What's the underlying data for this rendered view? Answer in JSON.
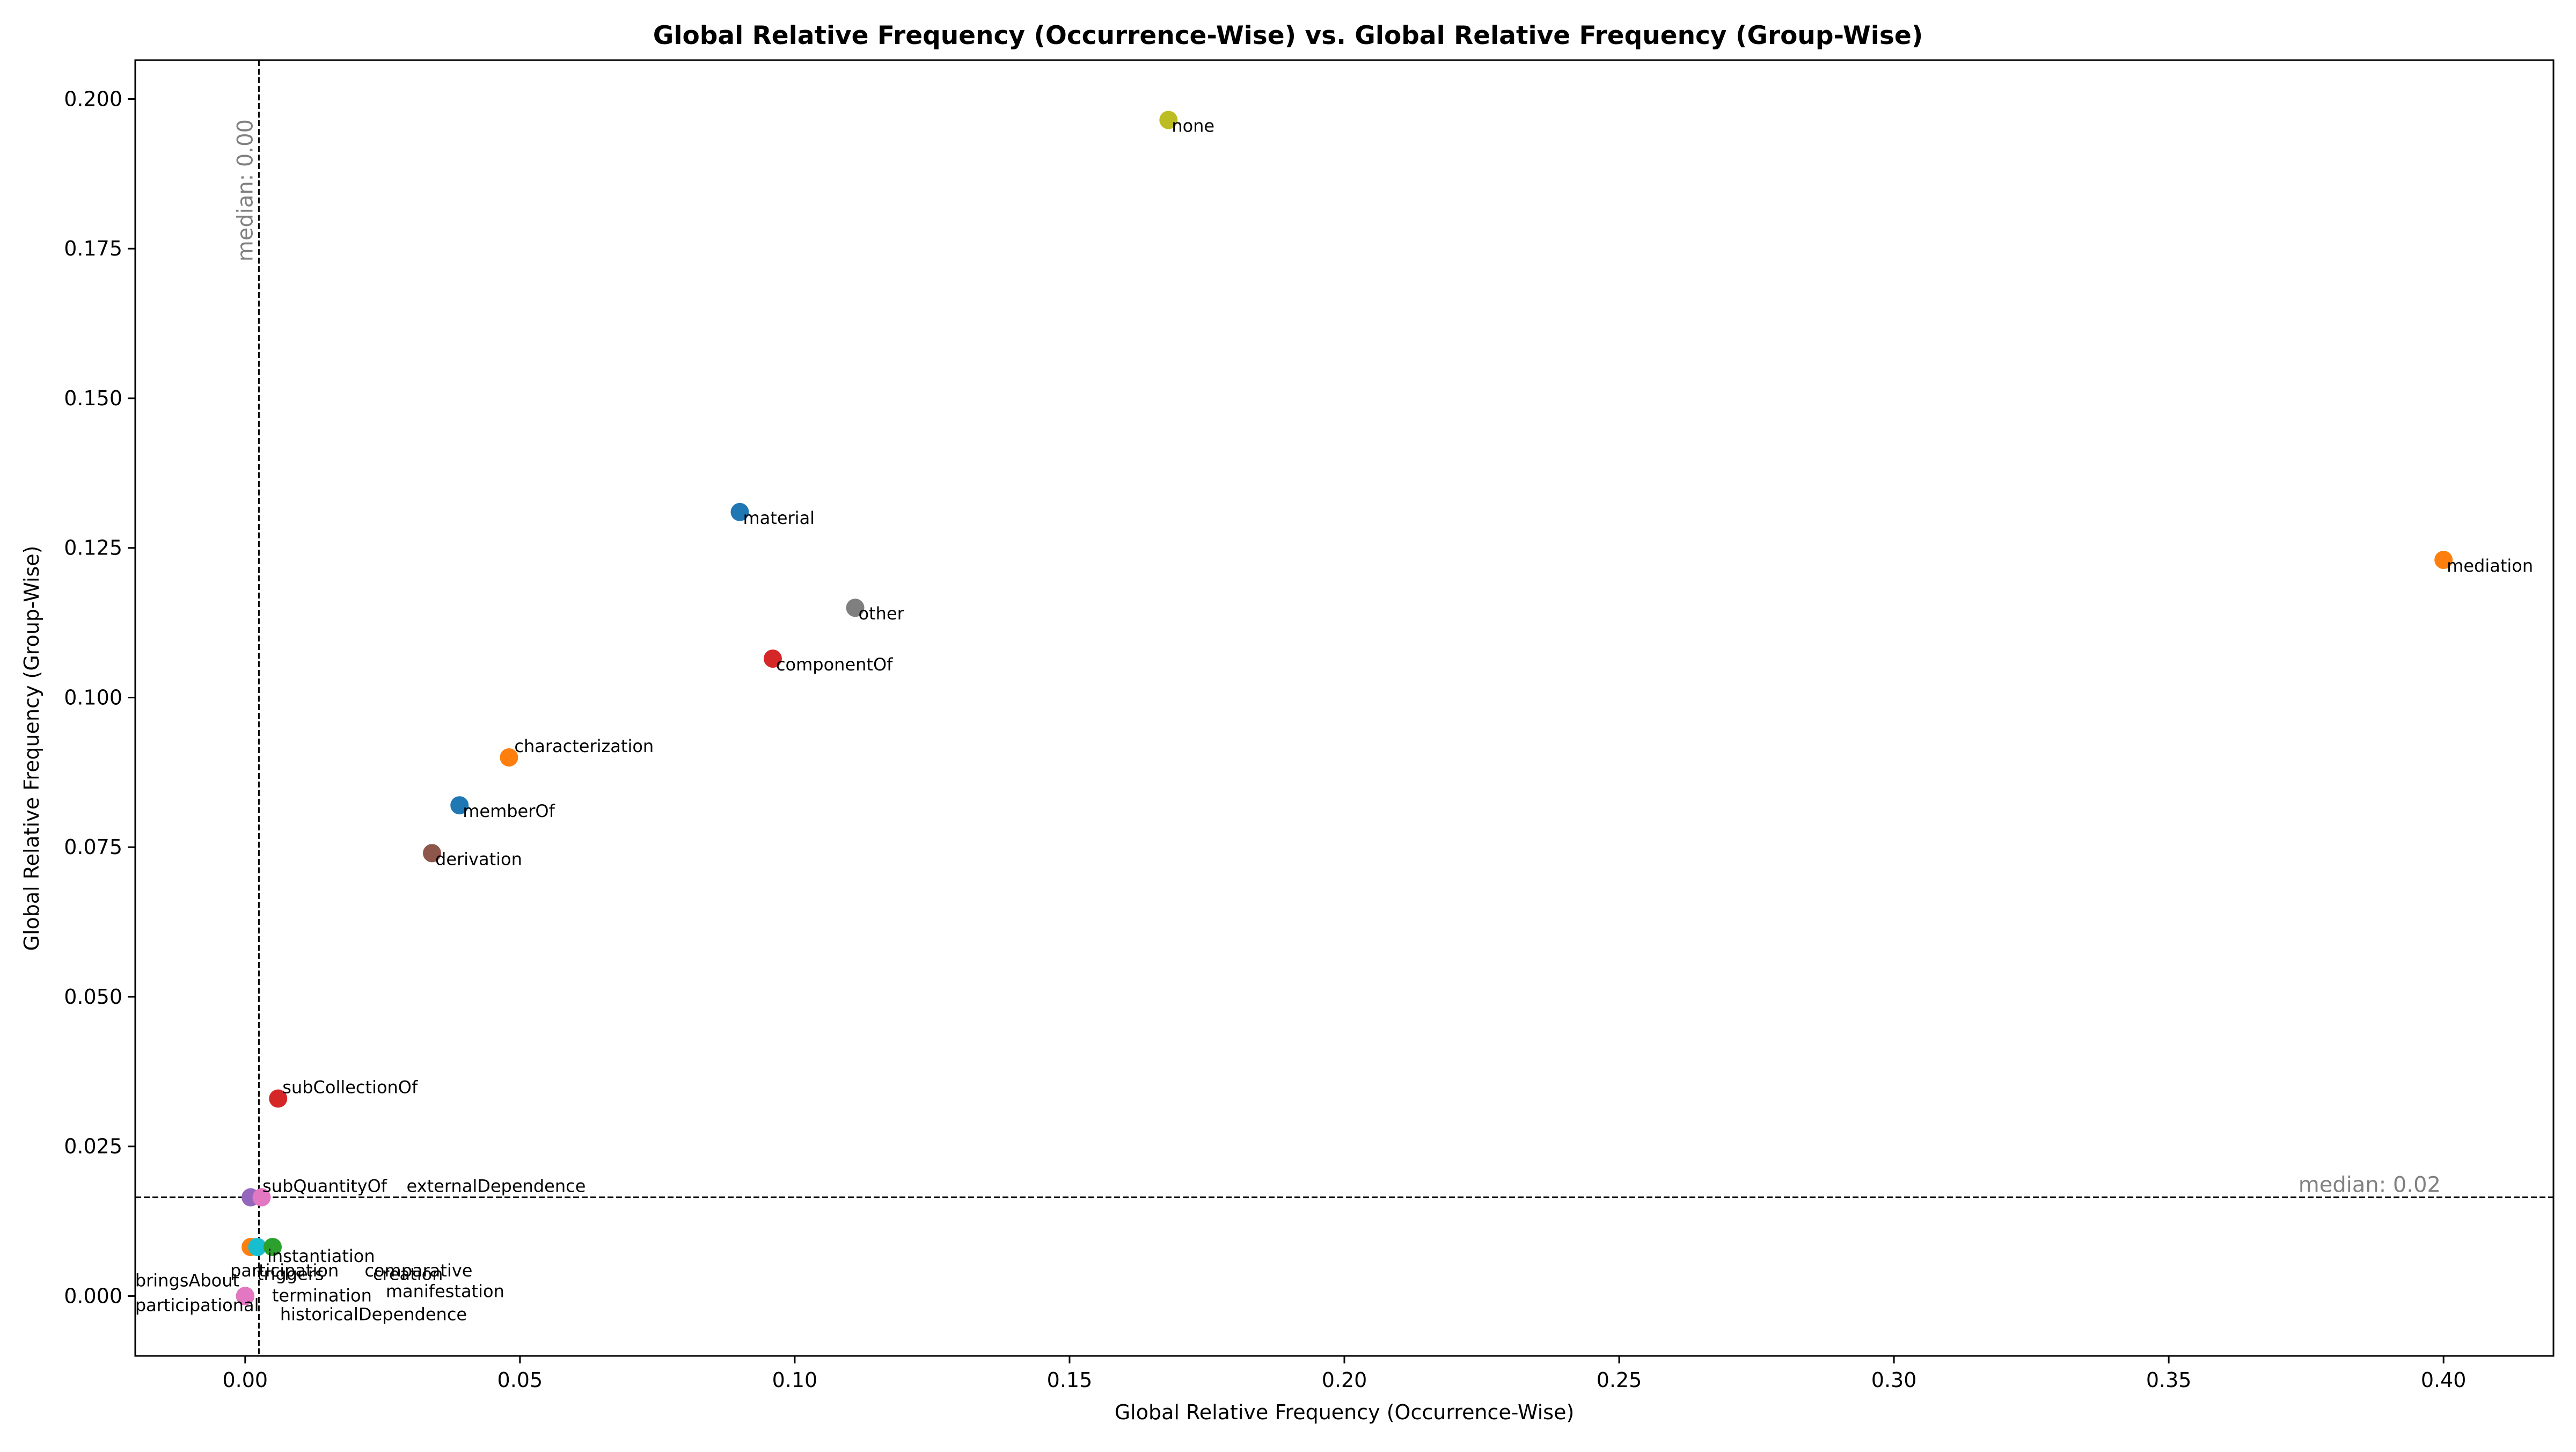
{
  "chart_data": {
    "type": "scatter",
    "title": "Global Relative Frequency (Occurrence-Wise) vs. Global Relative Frequency (Group-Wise)",
    "xlabel": "Global Relative Frequency (Occurrence-Wise)",
    "ylabel": "Global Relative Frequency (Group-Wise)",
    "xlim": [
      -0.02,
      0.42
    ],
    "ylim": [
      -0.01,
      0.2065
    ],
    "x_ticks": [
      "0.00",
      "0.05",
      "0.10",
      "0.15",
      "0.20",
      "0.25",
      "0.30",
      "0.35",
      "0.40"
    ],
    "y_ticks": [
      "0.000",
      "0.025",
      "0.050",
      "0.075",
      "0.100",
      "0.125",
      "0.150",
      "0.175",
      "0.200"
    ],
    "grid": false,
    "legend": "none",
    "medians": {
      "x": {
        "value": 0.0025,
        "label": "median: 0.00"
      },
      "y": {
        "value": 0.0165,
        "label": "median: 0.02"
      }
    },
    "points": [
      {
        "label": "none",
        "x": 0.168,
        "y": 0.1965,
        "color": "#bcbd22"
      },
      {
        "label": "material",
        "x": 0.09,
        "y": 0.131,
        "color": "#1f77b4"
      },
      {
        "label": "mediation",
        "x": 0.4,
        "y": 0.123,
        "color": "#ff7f0e"
      },
      {
        "label": "other",
        "x": 0.111,
        "y": 0.115,
        "color": "#7f7f7f"
      },
      {
        "label": "componentOf",
        "x": 0.096,
        "y": 0.1065,
        "color": "#d62728"
      },
      {
        "label": "characterization",
        "x": 0.048,
        "y": 0.09,
        "color": "#ff7f0e"
      },
      {
        "label": "memberOf",
        "x": 0.039,
        "y": 0.082,
        "color": "#1f77b4"
      },
      {
        "label": "derivation",
        "x": 0.034,
        "y": 0.074,
        "color": "#8c564b"
      },
      {
        "label": "subCollectionOf",
        "x": 0.006,
        "y": 0.033,
        "color": "#d62728"
      },
      {
        "label": "subQuantityOf",
        "x": 0.001,
        "y": 0.0165,
        "color": "#9467bd"
      },
      {
        "label": "externalDependence",
        "x": 0.003,
        "y": 0.0165,
        "color": "#e377c2"
      },
      {
        "label": "participation",
        "x": 0.001,
        "y": 0.0082,
        "color": "#ff7f0e"
      },
      {
        "label": "comparative",
        "x": 0.0022,
        "y": 0.0082,
        "color": "#17becf"
      },
      {
        "label": "instantiation",
        "x": 0.005,
        "y": 0.0082,
        "color": "#2ca02c"
      },
      {
        "label": "bringsAbout",
        "x": 0.0,
        "y": 0.0,
        "color": "#1f77b4"
      },
      {
        "label": "participational",
        "x": 0.0,
        "y": 0.0,
        "color": "#ff7f0e"
      },
      {
        "label": "triggers",
        "x": 0.0,
        "y": 0.0,
        "color": "#2ca02c"
      },
      {
        "label": "creation",
        "x": 0.0,
        "y": 0.0,
        "color": "#d62728"
      },
      {
        "label": "termination",
        "x": 0.0,
        "y": 0.0,
        "color": "#9467bd"
      },
      {
        "label": "manifestation",
        "x": 0.0,
        "y": 0.0,
        "color": "#8c564b"
      },
      {
        "label": "historicalDependence",
        "x": 0.0,
        "y": 0.0,
        "color": "#e377c2"
      }
    ]
  }
}
